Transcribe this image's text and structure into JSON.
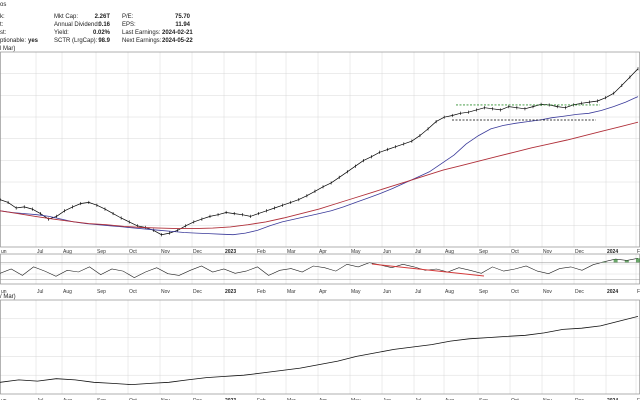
{
  "header": {
    "ticker_fragment": "os",
    "legend_fragment_top": "l Mar)",
    "legend_fragment_bottom": "/ Mar)"
  },
  "stats": {
    "left_partial": [
      {
        "label": "k:",
        "value": ""
      },
      {
        "label": "t:",
        "value": ""
      },
      {
        "label": "st:",
        "value": ""
      },
      {
        "label": "ptionable:",
        "value": "yes"
      }
    ],
    "mid": [
      {
        "label": "Mkt Cap:",
        "value": "2.26T"
      },
      {
        "label": "Annual Dividend:",
        "value": "0.16"
      },
      {
        "label": "Yield:",
        "value": "0.02%"
      },
      {
        "label": "SCTR (LrgCap):",
        "value": "98.9"
      }
    ],
    "right": [
      {
        "label": "P/E:",
        "value": "75.70"
      },
      {
        "label": "EPS:",
        "value": "11.94"
      },
      {
        "label": "Last Earnings:",
        "value": "2024-02-21"
      },
      {
        "label": "Next Earnings:",
        "value": "2024-05-22"
      }
    ]
  },
  "colors": {
    "price": "#000000",
    "ma_short": "#3a3a9a",
    "ma_long": "#b0303a",
    "trend_red": "#d33a3a",
    "dashed_green": "#2f8f2f",
    "overbought_fill": "#3a8a3a",
    "grid": "#d8d8d8"
  },
  "chart_data": {
    "type": "line",
    "x_axis_labels": [
      "un",
      "Jul",
      "Aug",
      "Sep",
      "Oct",
      "Nov",
      "Dec",
      "2023",
      "Feb",
      "Mar",
      "Apr",
      "May",
      "Jun",
      "Jul",
      "Aug",
      "Sep",
      "Oct",
      "Nov",
      "Dec",
      "2024",
      "Feb"
    ],
    "panels": [
      {
        "name": "price",
        "grid": true,
        "series": [
          {
            "name": "",
            "role": "price",
            "values": [
              185,
              180,
              170,
              172,
              168,
              160,
              150,
              155,
              165,
              172,
              178,
              180,
              175,
              168,
              160,
              152,
              145,
              138,
              135,
              130,
              122,
              125,
              130,
              138,
              145,
              150,
              155,
              158,
              162,
              160,
              158,
              155,
              160,
              165,
              170,
              175,
              180,
              185,
              192,
              200,
              208,
              215,
              225,
              235,
              245,
              255,
              262,
              270,
              275,
              280,
              285,
              290,
              300,
              312,
              325,
              333,
              336,
              340,
              342,
              346,
              350,
              348,
              346,
              352,
              350,
              348,
              352,
              356,
              355,
              352,
              350,
              355,
              358,
              360,
              362,
              368,
              376,
              390,
              405,
              420
            ]
          },
          {
            "name": "",
            "role": "ma_short",
            "values": [
              165,
              162,
              160,
              158,
              155,
              150,
              145,
              142,
              140,
              138,
              136,
              134,
              132,
              130,
              128,
              126,
              125,
              124,
              123,
              122,
              125,
              130,
              138,
              145,
              150,
              155,
              160,
              165,
              172,
              180,
              188,
              196,
              205,
              215,
              225,
              235,
              250,
              265,
              285,
              300,
              312,
              318,
              322,
              325,
              328,
              332,
              335,
              338,
              340,
              345,
              352,
              360,
              370
            ]
          },
          {
            "name": "",
            "role": "ma_long",
            "values": [
              165,
              160,
              155,
              150,
              146,
              142,
              140,
              137,
              135,
              134,
              133,
              133,
              134,
              136,
              140,
              145,
              152,
              160,
              168,
              178,
              188,
              198,
              208,
              218,
              228,
              238,
              246,
              254,
              262,
              270,
              278,
              285,
              292,
              300,
              308,
              316,
              324
            ]
          }
        ],
        "annotations": [
          {
            "type": "horizontal-channel",
            "upper_color": "green",
            "lower_color": "black",
            "from": "Aug",
            "to": "Nov"
          }
        ]
      },
      {
        "name": "oscillator",
        "grid": true,
        "series": [
          {
            "name": "",
            "role": "oscillator",
            "values": [
              45,
              55,
              40,
              60,
              50,
              38,
              52,
              48,
              60,
              42,
              55,
              50,
              35,
              48,
              58,
              44,
              40,
              52,
              62,
              48,
              55,
              45,
              50,
              60,
              40,
              52,
              56,
              48,
              62,
              58,
              50,
              66,
              60,
              70,
              64,
              58,
              66,
              60,
              52,
              55,
              48,
              58,
              52,
              45,
              60,
              50,
              55,
              62,
              50,
              44,
              56,
              60,
              52,
              65,
              72,
              78,
              75,
              80
            ]
          }
        ],
        "annotations": [
          {
            "type": "trendline",
            "color": "red",
            "from": "Jun",
            "to": "Sep",
            "direction": "down"
          }
        ]
      },
      {
        "name": "relative",
        "grid": true,
        "series": [
          {
            "name": "",
            "role": "relative",
            "values": [
              10,
              12,
              11,
              13,
              12,
              10,
              9,
              8,
              9,
              10,
              12,
              14,
              15,
              16,
              18,
              20,
              22,
              25,
              28,
              32,
              35,
              38,
              40,
              42,
              45,
              47,
              48,
              49,
              50,
              52,
              55,
              56,
              58,
              62,
              66
            ]
          }
        ]
      }
    ]
  }
}
